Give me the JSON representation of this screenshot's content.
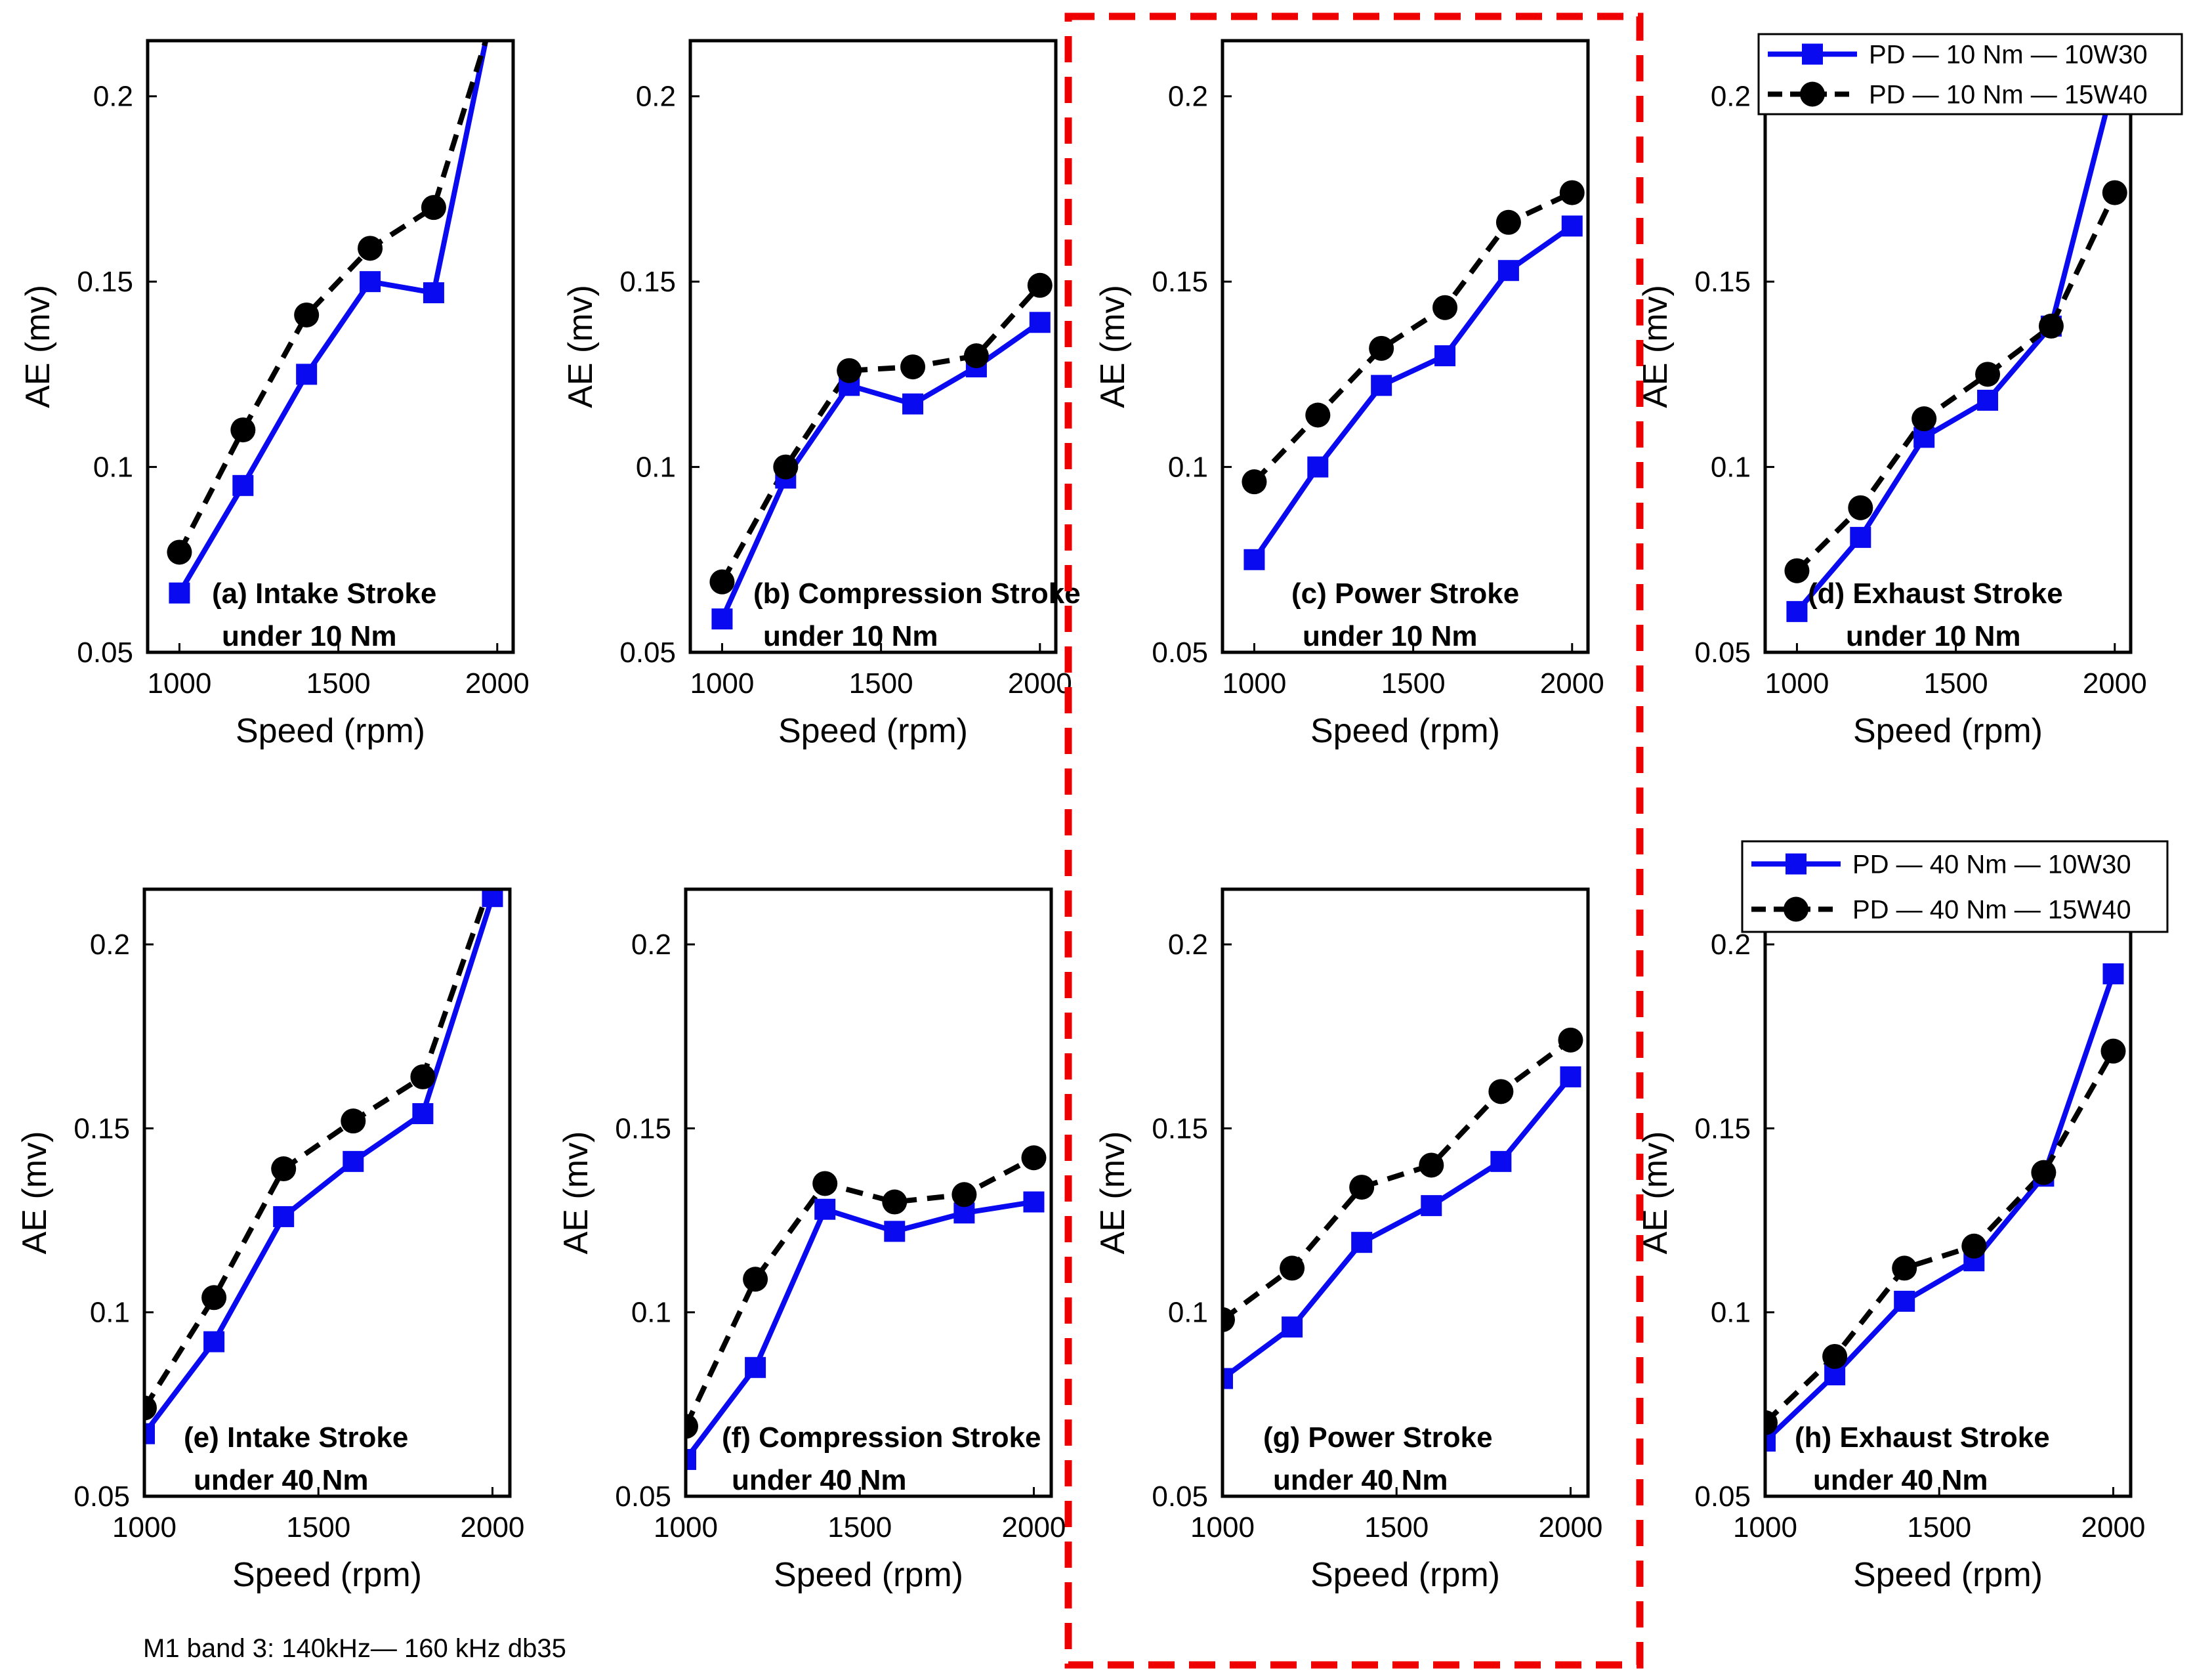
{
  "footnote": "M1 band 3: 140kHz— 160 kHz db35",
  "colors": {
    "series1": "#0a0af0",
    "series2": "#000000",
    "highlight": "#ee0000"
  },
  "legends": [
    {
      "panel": 3,
      "entries": [
        "PD — 10 Nm — 10W30",
        "PD — 10 Nm — 15W40"
      ]
    },
    {
      "panel": 7,
      "entries": [
        "PD — 40 Nm — 10W30",
        "PD — 40 Nm — 15W40"
      ]
    }
  ],
  "chart_data": [
    {
      "type": "line",
      "xlabel": "Speed (rpm)",
      "ylabel": "AE (mv)",
      "annotation": [
        "(a)  Intake Stroke",
        "under 10 Nm"
      ],
      "xlim": [
        900,
        2050
      ],
      "ylim": [
        0.05,
        0.215
      ],
      "xticks": [
        "1000",
        "1500",
        "2000"
      ],
      "yticks": [
        "0.05",
        "0.1",
        "0.15",
        "0.2"
      ],
      "x": [
        1000,
        1200,
        1400,
        1600,
        1800,
        2000
      ],
      "series": [
        {
          "name": "PD — 10 Nm — 10W30",
          "values": [
            0.066,
            0.095,
            0.125,
            0.15,
            0.147,
            0.23
          ]
        },
        {
          "name": "PD — 10 Nm — 15W40",
          "values": [
            0.077,
            0.11,
            0.141,
            0.159,
            0.17,
            0.225
          ]
        }
      ]
    },
    {
      "type": "line",
      "xlabel": "Speed (rpm)",
      "ylabel": "AE (mv)",
      "annotation": [
        "(b)  Compression Stroke",
        "under 10 Nm"
      ],
      "xlim": [
        900,
        2050
      ],
      "ylim": [
        0.05,
        0.215
      ],
      "xticks": [
        "1000",
        "1500",
        "2000"
      ],
      "yticks": [
        "0.05",
        "0.1",
        "0.15",
        "0.2"
      ],
      "x": [
        1000,
        1200,
        1400,
        1600,
        1800,
        2000
      ],
      "series": [
        {
          "name": "PD — 10 Nm — 10W30",
          "values": [
            0.059,
            0.097,
            0.122,
            0.117,
            0.127,
            0.139
          ]
        },
        {
          "name": "PD — 10 Nm — 15W40",
          "values": [
            0.069,
            0.1,
            0.126,
            0.127,
            0.13,
            0.149
          ]
        }
      ]
    },
    {
      "type": "line",
      "xlabel": "Speed (rpm)",
      "ylabel": "AE (mv)",
      "annotation": [
        "(c) Power Stroke",
        "under 10 Nm"
      ],
      "xlim": [
        900,
        2050
      ],
      "ylim": [
        0.05,
        0.215
      ],
      "xticks": [
        "1000",
        "1500",
        "2000"
      ],
      "yticks": [
        "0.05",
        "0.1",
        "0.15",
        "0.2"
      ],
      "x": [
        1000,
        1200,
        1400,
        1600,
        1800,
        2000
      ],
      "series": [
        {
          "name": "PD — 10 Nm — 10W30",
          "values": [
            0.075,
            0.1,
            0.122,
            0.13,
            0.153,
            0.165
          ]
        },
        {
          "name": "PD — 10 Nm — 15W40",
          "values": [
            0.096,
            0.114,
            0.132,
            0.143,
            0.166,
            0.174
          ]
        }
      ]
    },
    {
      "type": "line",
      "xlabel": "Speed (rpm)",
      "ylabel": "AE (mv)",
      "annotation": [
        "(d)  Exhaust Stroke",
        "under 10 Nm"
      ],
      "xlim": [
        900,
        2050
      ],
      "ylim": [
        0.05,
        0.215
      ],
      "xticks": [
        "1000",
        "1500",
        "2000"
      ],
      "yticks": [
        "0.05",
        "0.1",
        "0.15",
        "0.2"
      ],
      "x": [
        1000,
        1200,
        1400,
        1600,
        1800,
        2000
      ],
      "series": [
        {
          "name": "PD — 10 Nm — 10W30",
          "values": [
            0.061,
            0.081,
            0.108,
            0.118,
            0.138,
            0.205
          ]
        },
        {
          "name": "PD — 10 Nm — 15W40",
          "values": [
            0.072,
            0.089,
            0.113,
            0.125,
            0.138,
            0.174
          ]
        }
      ]
    },
    {
      "type": "line",
      "xlabel": "Speed (rpm)",
      "ylabel": "AE (mv)",
      "annotation": [
        "(e)  Intake Stroke",
        "under 40 Nm"
      ],
      "xlim": [
        1000,
        2050
      ],
      "ylim": [
        0.05,
        0.215
      ],
      "xticks": [
        "1000",
        "1500",
        "2000"
      ],
      "yticks": [
        "0.05",
        "0.1",
        "0.15",
        "0.2"
      ],
      "x": [
        1000,
        1200,
        1400,
        1600,
        1800,
        2000
      ],
      "series": [
        {
          "name": "PD — 40 Nm — 10W30",
          "values": [
            0.067,
            0.092,
            0.126,
            0.141,
            0.154,
            0.213
          ]
        },
        {
          "name": "PD — 40 Nm — 15W40",
          "values": [
            0.074,
            0.104,
            0.139,
            0.152,
            0.164,
            0.218
          ]
        }
      ]
    },
    {
      "type": "line",
      "xlabel": "Speed (rpm)",
      "ylabel": "AE (mv)",
      "annotation": [
        "(f)  Compression Stroke",
        "under 40 Nm"
      ],
      "xlim": [
        1000,
        2050
      ],
      "ylim": [
        0.05,
        0.215
      ],
      "xticks": [
        "1000",
        "1500",
        "2000"
      ],
      "yticks": [
        "0.05",
        "0.1",
        "0.15",
        "0.2"
      ],
      "x": [
        1000,
        1200,
        1400,
        1600,
        1800,
        2000
      ],
      "series": [
        {
          "name": "PD — 40 Nm — 10W30",
          "values": [
            0.06,
            0.085,
            0.128,
            0.122,
            0.127,
            0.13
          ]
        },
        {
          "name": "PD — 40 Nm — 15W40",
          "values": [
            0.069,
            0.109,
            0.135,
            0.13,
            0.132,
            0.142
          ]
        }
      ]
    },
    {
      "type": "line",
      "xlabel": "Speed (rpm)",
      "ylabel": "AE (mv)",
      "annotation": [
        "(g) Power Stroke",
        "under 40 Nm"
      ],
      "xlim": [
        1000,
        2050
      ],
      "ylim": [
        0.05,
        0.215
      ],
      "xticks": [
        "1000",
        "1500",
        "2000"
      ],
      "yticks": [
        "0.05",
        "0.1",
        "0.15",
        "0.2"
      ],
      "x": [
        1000,
        1200,
        1400,
        1600,
        1800,
        2000
      ],
      "series": [
        {
          "name": "PD — 40 Nm — 10W30",
          "values": [
            0.082,
            0.096,
            0.119,
            0.129,
            0.141,
            0.164
          ]
        },
        {
          "name": "PD — 40 Nm — 15W40",
          "values": [
            0.098,
            0.112,
            0.134,
            0.14,
            0.16,
            0.174
          ]
        }
      ]
    },
    {
      "type": "line",
      "xlabel": "Speed (rpm)",
      "ylabel": "AE (mv)",
      "annotation": [
        "(h)  Exhaust Stroke",
        "under 40 Nm"
      ],
      "xlim": [
        1000,
        2050
      ],
      "ylim": [
        0.05,
        0.215
      ],
      "xticks": [
        "1000",
        "1500",
        "2000"
      ],
      "yticks": [
        "0.05",
        "0.1",
        "0.15",
        "0.2"
      ],
      "x": [
        1000,
        1200,
        1400,
        1600,
        1800,
        2000
      ],
      "series": [
        {
          "name": "PD — 40 Nm — 10W30",
          "values": [
            0.065,
            0.083,
            0.103,
            0.114,
            0.137,
            0.192
          ]
        },
        {
          "name": "PD — 40 Nm — 15W40",
          "values": [
            0.07,
            0.088,
            0.112,
            0.118,
            0.138,
            0.171
          ]
        }
      ]
    }
  ]
}
